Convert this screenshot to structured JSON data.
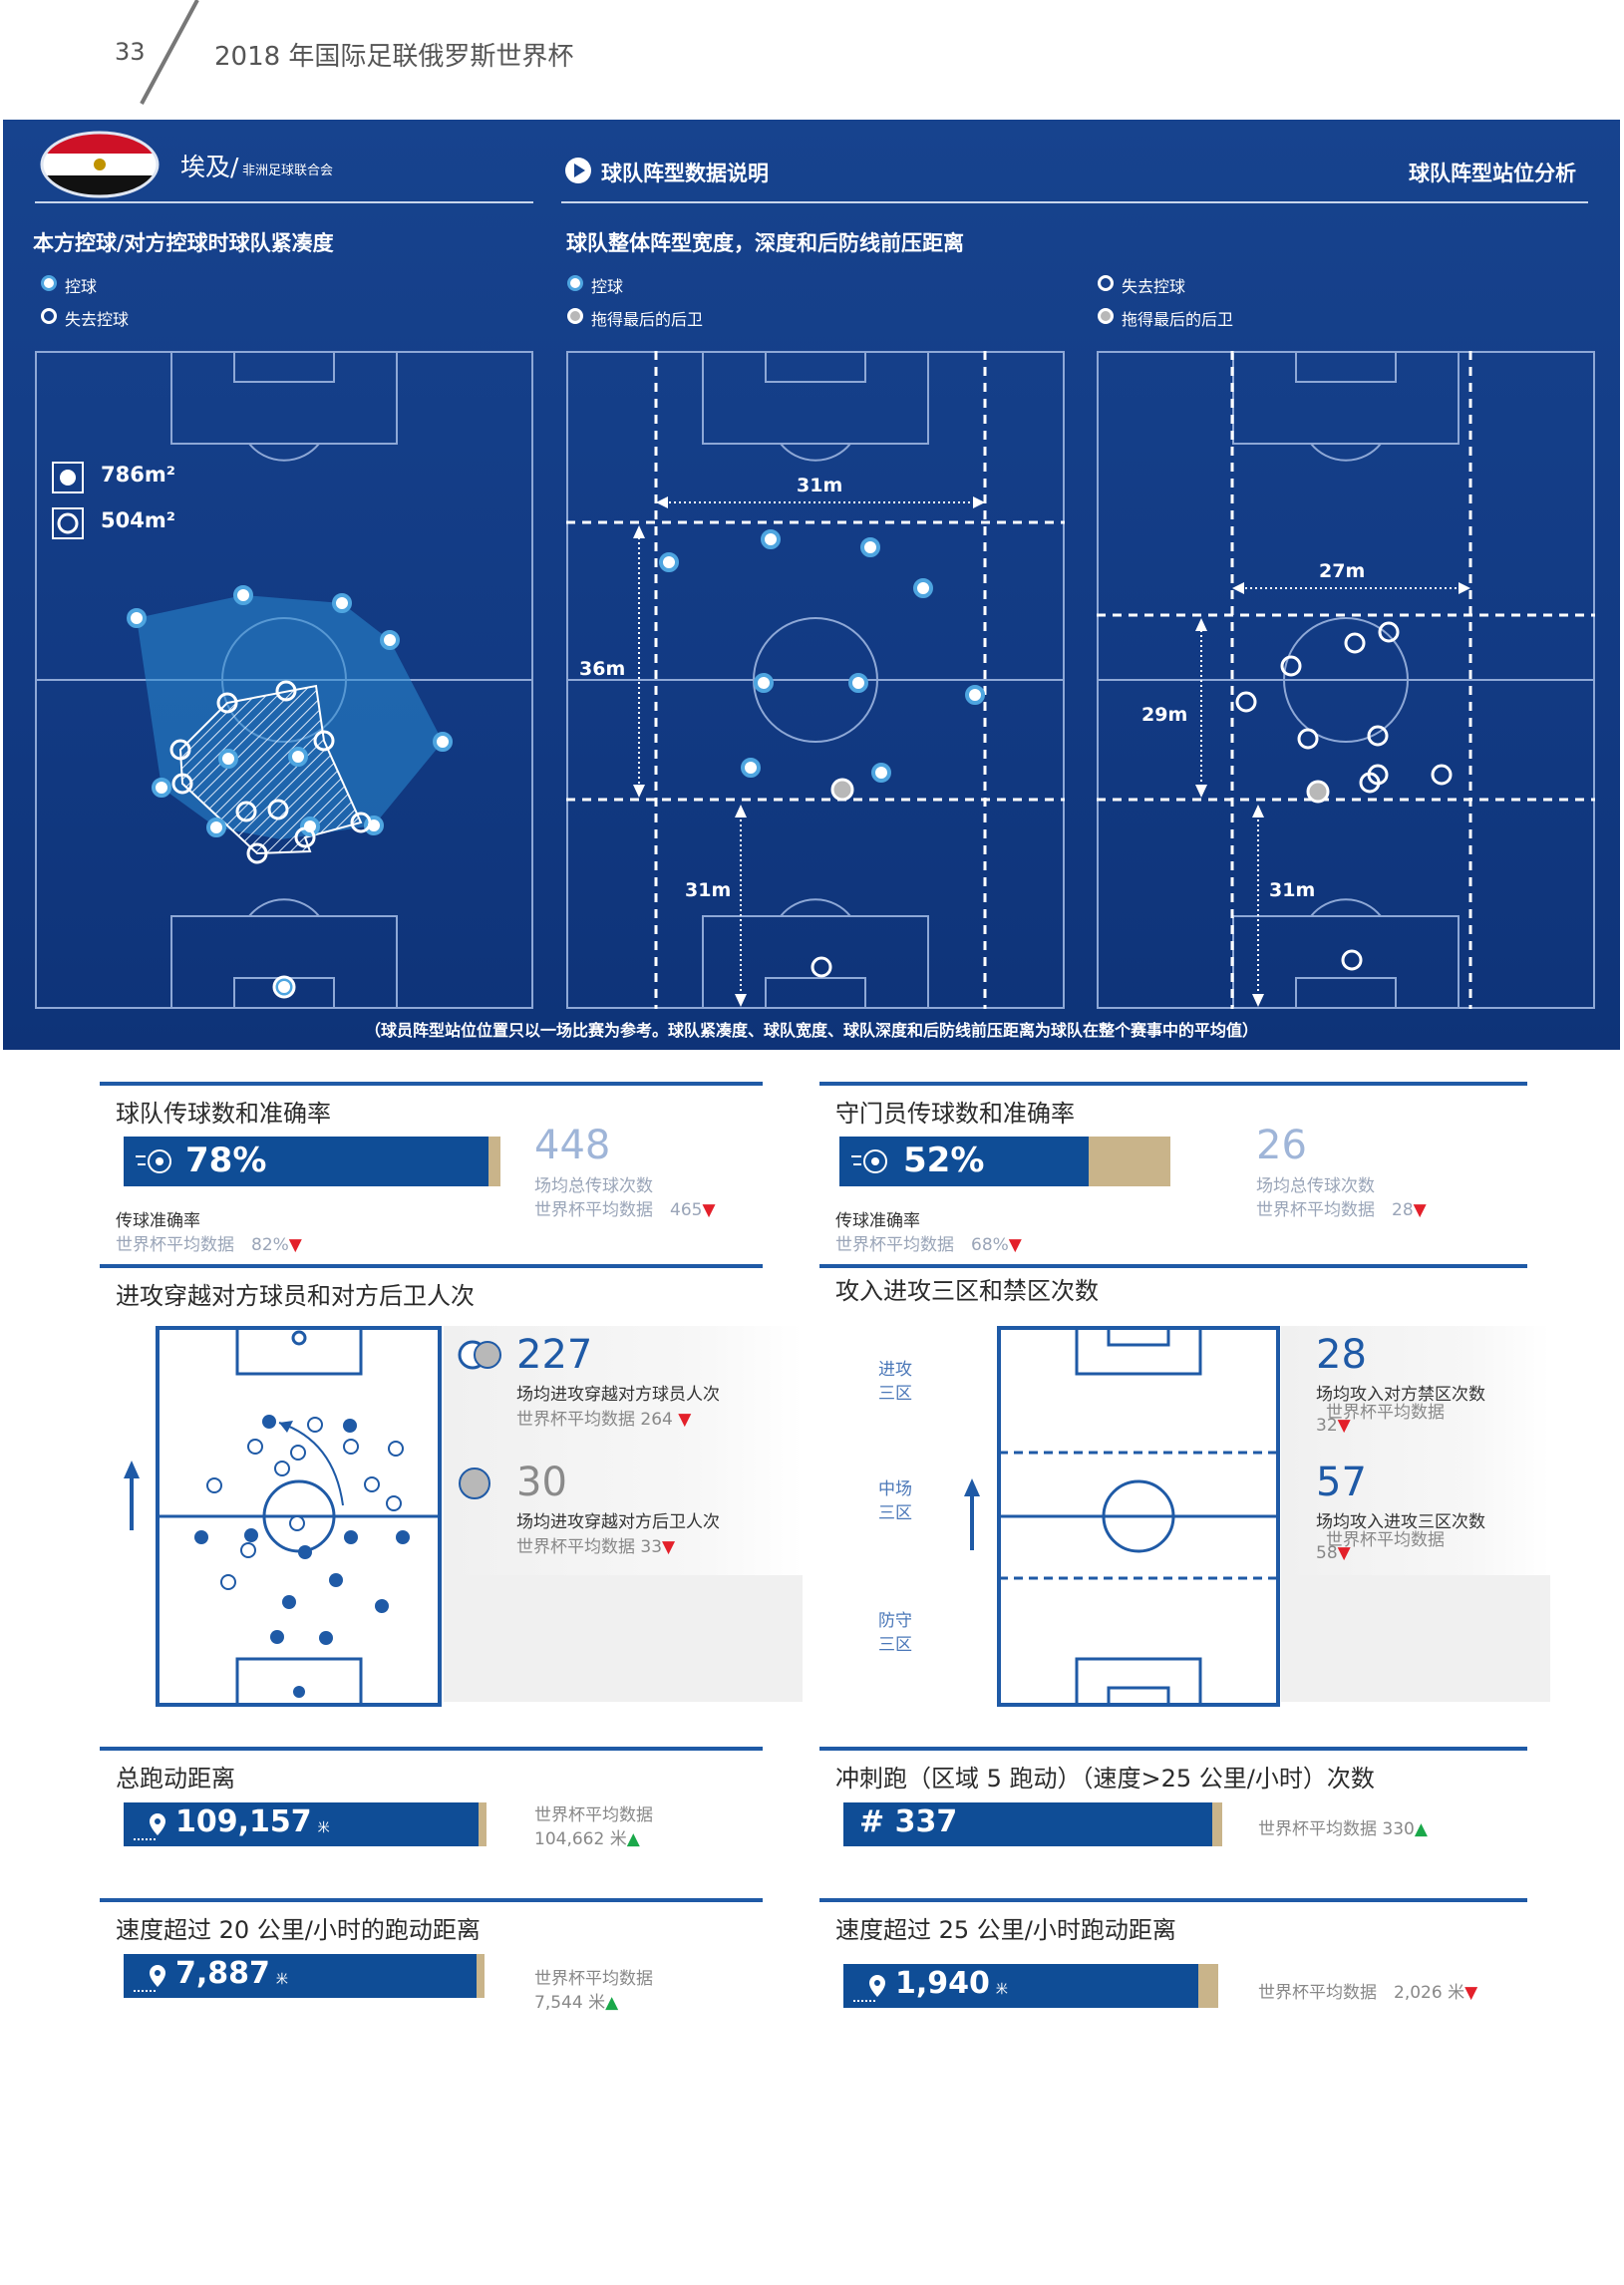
{
  "header": {
    "page_number": "33",
    "title": "2018 年国际足联俄罗斯世界杯"
  },
  "team": {
    "name": "埃及/",
    "confederation": "非洲足球联合会"
  },
  "section": {
    "explain": "球队阵型数据说明",
    "analysis": "球队阵型站位分析"
  },
  "compactness": {
    "title": "本方控球/对方控球时球队紧凑度",
    "legend_possession": "控球",
    "legend_lost": "失去控球",
    "area_possession": "786m²",
    "area_lost": "504m²"
  },
  "shape": {
    "title": "球队整体阵型宽度，深度和后防线前压距离",
    "in_possession": {
      "legend_a": "控球",
      "legend_b": "拖得最后的后卫",
      "width": "31m",
      "depth": "36m",
      "line_height": "31m"
    },
    "out_possession": {
      "legend_a": "失去控球",
      "legend_b": "拖得最后的后卫",
      "width": "27m",
      "depth": "29m",
      "line_height": "31m"
    }
  },
  "footnote": "（球员阵型站位位置只以一场比赛为参考。球队紧凑度、球队宽度、球队深度和后防线前压距离为球队在整个赛事中的平均值）",
  "team_passing": {
    "title": "球队传球数和准确率",
    "accuracy": "78%",
    "accuracy_label": "传球准确率",
    "world_avg_acc": "世界杯平均数据　82%",
    "total": "448",
    "total_label": "场均总传球次数",
    "world_avg_total": "世界杯平均数据　465"
  },
  "gk_passing": {
    "title": "守门员传球数和准确率",
    "accuracy": "52%",
    "accuracy_label": "传球准确率",
    "world_avg_acc": "世界杯平均数据　68%",
    "total": "26",
    "total_label": "场均总传球次数",
    "world_avg_total": "世界杯平均数据　28"
  },
  "breaking_lines": {
    "title": "进攻穿越对方球员和对方后卫人次",
    "players_value": "227",
    "players_label": "场均进攻穿越对方球员人次",
    "players_avg": "世界杯平均数据 264",
    "defenders_value": "30",
    "defenders_label": "场均进攻穿越对方后卫人次",
    "defenders_avg": "世界杯平均数据 33"
  },
  "final_third": {
    "title": "攻入进攻三区和禁区次数",
    "zone_attack": [
      "进攻",
      "三区"
    ],
    "zone_middle": [
      "中场",
      "三区"
    ],
    "zone_defence": [
      "防守",
      "三区"
    ],
    "box_value": "28",
    "box_label": "场均攻入对方禁区次数",
    "box_avg_label": "世界杯平均数据",
    "box_avg": "32",
    "third_value": "57",
    "third_label": "场均攻入进攻三区次数",
    "third_avg_label": "世界杯平均数据",
    "third_avg": "58"
  },
  "distance": {
    "title": "总跑动距离",
    "value": "109,157",
    "unit": "米",
    "avg_label": "世界杯平均数据",
    "avg_value": "104,662 米"
  },
  "sprints": {
    "title": "冲刺跑（区域 5 跑动）（速度>25 公里/小时）次数",
    "value": "# 337",
    "avg": "世界杯平均数据 330"
  },
  "dist20": {
    "title": "速度超过 20 公里/小时的跑动距离",
    "value": "7,887",
    "unit": "米",
    "avg_label": "世界杯平均数据",
    "avg_value": "7,544 米"
  },
  "dist25": {
    "title": "速度超过 25 公里/小时跑动距离",
    "value": "1,940",
    "unit": "米",
    "avg": "世界杯平均数据　2,026 米"
  },
  "colors": {
    "panel_blue": "#17438e",
    "bar_blue": "#0f4d96",
    "gold": "#c9b48a",
    "accent_blue": "#1f5aa6",
    "down_red": "#e3202a",
    "up_green": "#1aa84a"
  }
}
